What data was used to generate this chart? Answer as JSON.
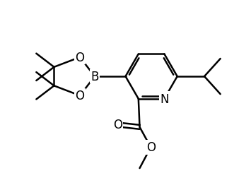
{
  "bg_color": "#ffffff",
  "line_color": "#000000",
  "line_width": 1.8,
  "font_size": 12,
  "fig_width": 3.55,
  "fig_height": 2.53,
  "dpi": 100,
  "xlim": [
    0,
    10
  ],
  "ylim": [
    0,
    7.1
  ]
}
